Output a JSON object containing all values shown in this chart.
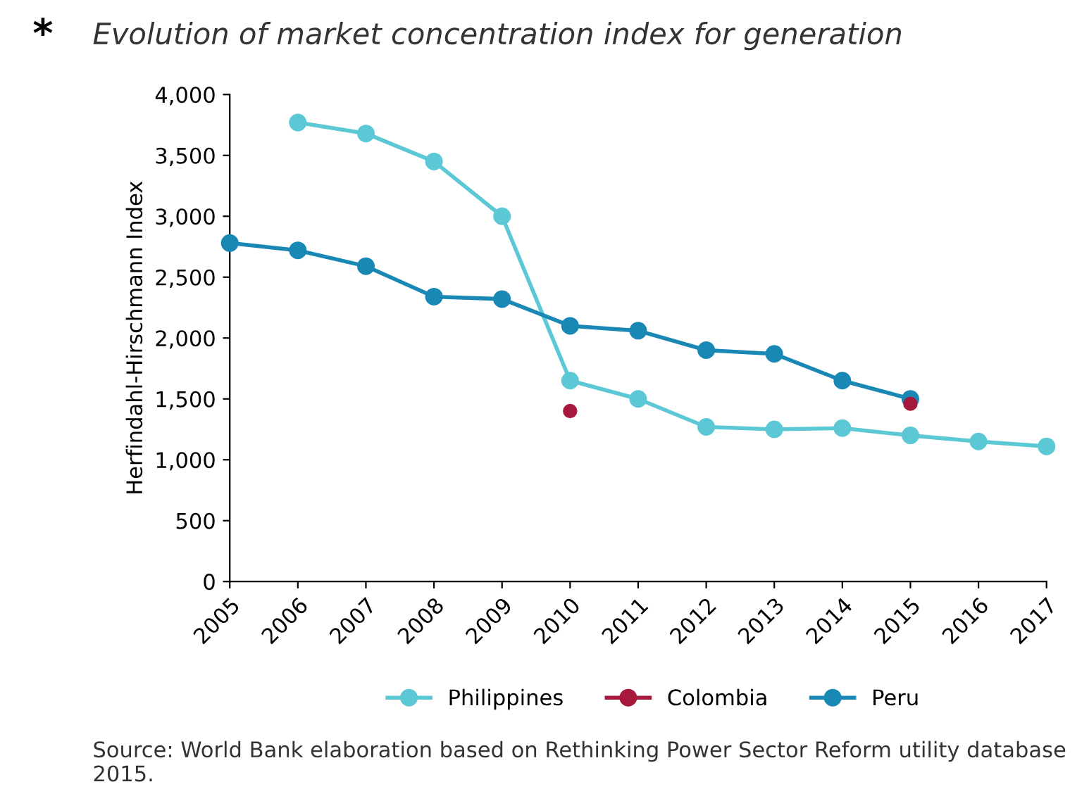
{
  "chart_data": {
    "type": "line",
    "title": "Evolution of market concentration index for generation",
    "ylabel": "Herfindahl-Hirschmann Index",
    "categories": [
      "2005",
      "2006",
      "2007",
      "2008",
      "2009",
      "2010",
      "2011",
      "2012",
      "2013",
      "2014",
      "2015",
      "2016",
      "2017"
    ],
    "series": [
      {
        "name": "Philippines",
        "color": "#5cc8d6",
        "values": [
          null,
          3770,
          3680,
          3450,
          3000,
          1650,
          1500,
          1270,
          1250,
          1260,
          1200,
          1150,
          1110
        ]
      },
      {
        "name": "Colombia",
        "color": "#a6193c",
        "type": "scatter",
        "values": [
          null,
          null,
          null,
          null,
          null,
          1400,
          null,
          null,
          null,
          null,
          1460,
          null,
          null
        ]
      },
      {
        "name": "Peru",
        "color": "#1a88b5",
        "values": [
          2780,
          2720,
          2590,
          2340,
          2320,
          2100,
          2060,
          1900,
          1870,
          1650,
          1500,
          null,
          null
        ]
      }
    ],
    "ylim": [
      0,
      4000
    ],
    "yticks": [
      0,
      {
        "value": 500,
        "label": "500"
      },
      {
        "value": 1000,
        "label": "1,000"
      },
      {
        "value": 1500,
        "label": "1,500"
      },
      {
        "value": 2000,
        "label": "2,000"
      },
      {
        "value": 2500,
        "label": "2,500"
      },
      {
        "value": 3000,
        "label": "3,000"
      },
      {
        "value": 3500,
        "label": "3,500"
      },
      {
        "value": 4000,
        "label": "4,000"
      }
    ],
    "grid": false,
    "legend": "bottom",
    "marker": "circle",
    "line_style": "solid",
    "annotations": [
      "*",
      "Source: World Bank elaboration based on Rethinking Power Sector Reform utility database 2015."
    ]
  }
}
